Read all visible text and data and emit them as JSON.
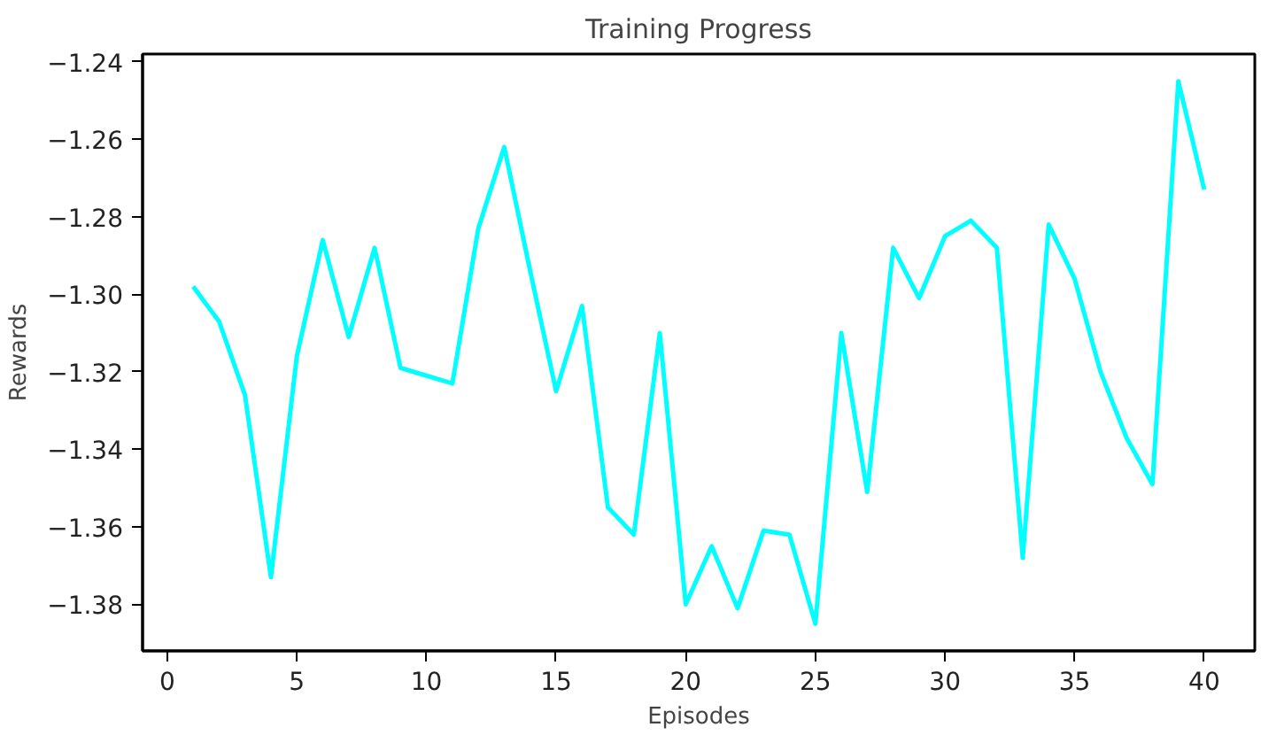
{
  "chart_data": {
    "type": "line",
    "title": "Training Progress",
    "xlabel": "Episodes",
    "ylabel": "Rewards",
    "x": [
      1,
      2,
      3,
      4,
      5,
      6,
      7,
      8,
      9,
      10,
      11,
      12,
      13,
      14,
      15,
      16,
      17,
      18,
      19,
      20,
      21,
      22,
      23,
      24,
      25,
      26,
      27,
      28,
      29,
      30,
      31,
      32,
      33,
      34,
      35,
      36,
      37,
      38,
      39,
      40
    ],
    "series": [
      {
        "color": "#00ffff",
        "values": [
          -1.298,
          -1.307,
          -1.326,
          -1.373,
          -1.316,
          -1.286,
          -1.311,
          -1.288,
          -1.319,
          -1.321,
          -1.323,
          -1.283,
          -1.262,
          -1.294,
          -1.325,
          -1.303,
          -1.355,
          -1.362,
          -1.31,
          -1.38,
          -1.365,
          -1.381,
          -1.361,
          -1.362,
          -1.385,
          -1.31,
          -1.351,
          -1.288,
          -1.301,
          -1.285,
          -1.281,
          -1.288,
          -1.368,
          -1.282,
          -1.296,
          -1.32,
          -1.337,
          -1.349,
          -1.245,
          -1.273
        ]
      }
    ],
    "xlim": [
      -0.95,
      41.95
    ],
    "ylim": [
      -1.392,
      -1.238
    ],
    "xticks": [
      0,
      5,
      10,
      15,
      20,
      25,
      30,
      35,
      40
    ],
    "yticks": [
      {
        "value": -1.38,
        "label": "−1.38"
      },
      {
        "value": -1.36,
        "label": "−1.36"
      },
      {
        "value": -1.34,
        "label": "−1.34"
      },
      {
        "value": -1.32,
        "label": "−1.32"
      },
      {
        "value": -1.3,
        "label": "−1.30"
      },
      {
        "value": -1.28,
        "label": "−1.28"
      },
      {
        "value": -1.26,
        "label": "−1.26"
      },
      {
        "value": -1.24,
        "label": "−1.24"
      }
    ],
    "grid": false,
    "marker": "none",
    "line_style": "solid"
  }
}
